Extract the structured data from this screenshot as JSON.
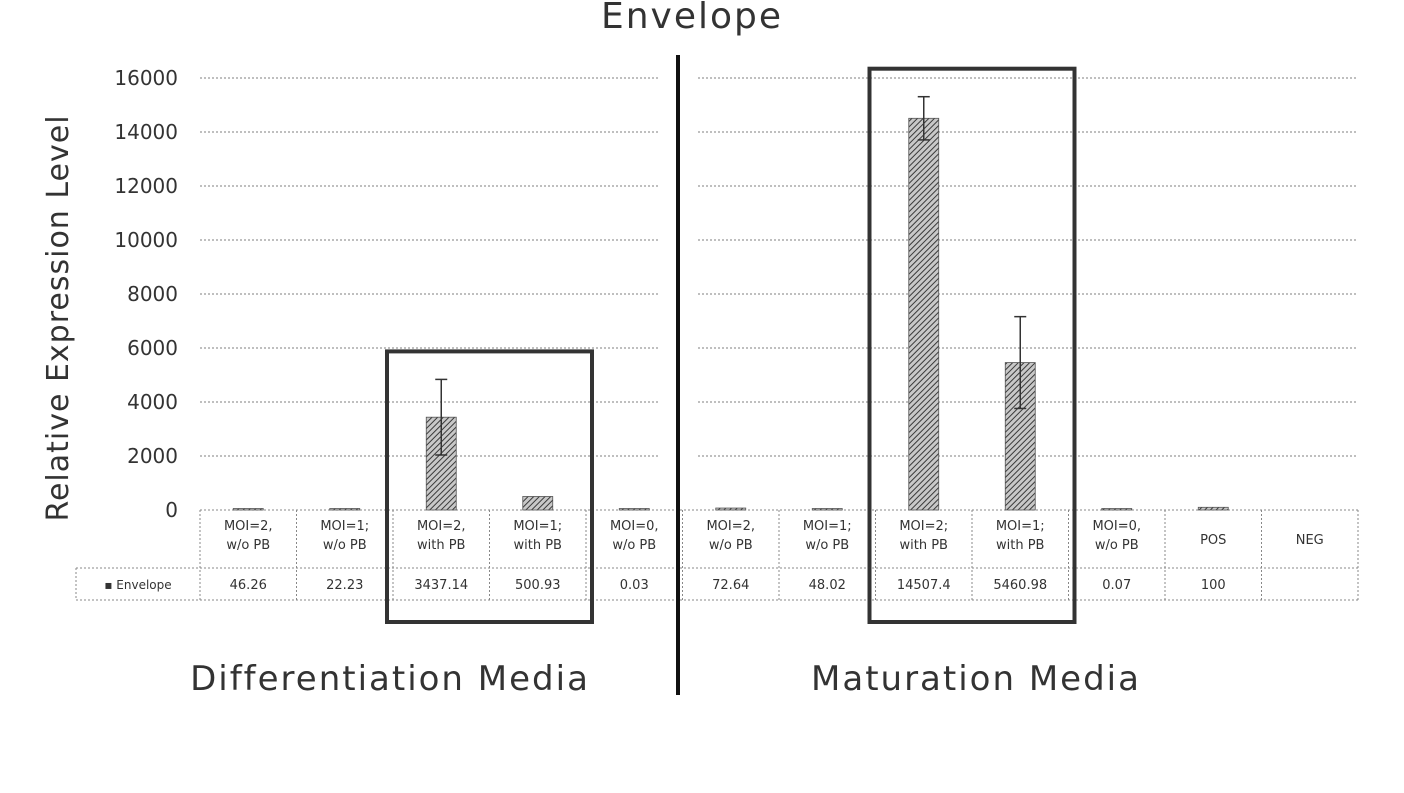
{
  "chart_data": {
    "type": "bar",
    "title": "Envelope",
    "ylabel": "Relative Expression Level",
    "xlabel": "",
    "ylim": [
      0,
      16000
    ],
    "yticks": [
      "0",
      "2000",
      "4000",
      "6000",
      "8000",
      "10000",
      "12000",
      "14000",
      "16000"
    ],
    "grid": true,
    "categories": [
      [
        "MOI=2,",
        "w/o PB"
      ],
      [
        "MOI=1;",
        "w/o PB"
      ],
      [
        "MOI=2,",
        "with PB"
      ],
      [
        "MOI=1;",
        "with PB"
      ],
      [
        "MOI=0,",
        "w/o PB"
      ],
      [
        "MOI=2,",
        "w/o PB"
      ],
      [
        "MOI=1;",
        "w/o PB"
      ],
      [
        "MOI=2;",
        "with PB"
      ],
      [
        "MOI=1;",
        "with PB"
      ],
      [
        "MOI=0,",
        "w/o PB"
      ],
      [
        "POS"
      ],
      [
        "NEG"
      ]
    ],
    "series": [
      {
        "name": "Envelope",
        "legend_label": "▪ Envelope",
        "values": [
          46.26,
          22.23,
          3437.14,
          500.93,
          0.03,
          72.64,
          48.02,
          14507.4,
          5460.98,
          0.07,
          100,
          null
        ],
        "value_labels": [
          "46.26",
          "22.23",
          "3437.14",
          "500.93",
          "0.03",
          "72.64",
          "48.02",
          "14507.4",
          "5460.98",
          "0.07",
          "100",
          ""
        ],
        "error": [
          0,
          0,
          1400,
          0,
          0,
          0,
          0,
          800,
          1700,
          0,
          0,
          0
        ]
      }
    ],
    "sections": [
      {
        "label": "Differentiation Media",
        "categories": [
          0,
          4
        ]
      },
      {
        "label": "Maturation Media",
        "categories": [
          5,
          11
        ]
      }
    ],
    "highlighted_groups": [
      [
        2,
        3
      ],
      [
        7,
        8
      ]
    ],
    "bar_color": "#555555",
    "grid_color": "#999999"
  }
}
